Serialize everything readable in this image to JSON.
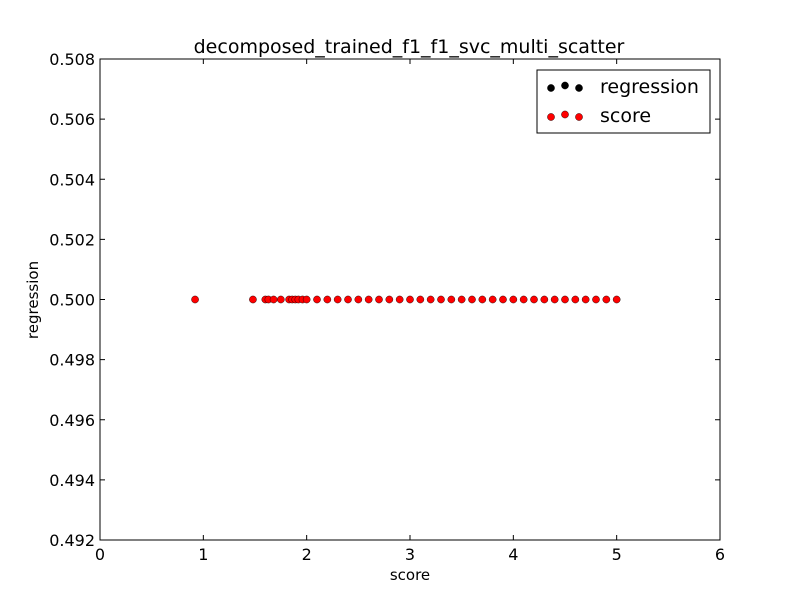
{
  "chart_data": {
    "type": "scatter",
    "title": "decomposed_trained_f1_f1_svc_multi_scatter",
    "xlabel": "score",
    "ylabel": "regression",
    "xlim": [
      0,
      6
    ],
    "ylim": [
      0.492,
      0.508
    ],
    "x_ticks": [
      "0",
      "1",
      "2",
      "3",
      "4",
      "5",
      "6"
    ],
    "y_ticks": [
      "0.492",
      "0.494",
      "0.496",
      "0.498",
      "0.500",
      "0.502",
      "0.504",
      "0.506",
      "0.508"
    ],
    "x_tick_values": [
      0,
      1,
      2,
      3,
      4,
      5,
      6
    ],
    "y_tick_values": [
      0.492,
      0.494,
      0.496,
      0.498,
      0.5,
      0.502,
      0.504,
      0.506,
      0.508
    ],
    "grid": false,
    "legend_position": "top-right",
    "series": [
      {
        "name": "regression",
        "color": "#000000",
        "points": []
      },
      {
        "name": "score",
        "color": "#ff0000",
        "points": [
          [
            0.92,
            0.5
          ],
          [
            1.48,
            0.5
          ],
          [
            1.6,
            0.5
          ],
          [
            1.63,
            0.5
          ],
          [
            1.68,
            0.5
          ],
          [
            1.75,
            0.5
          ],
          [
            1.83,
            0.5
          ],
          [
            1.86,
            0.5
          ],
          [
            1.89,
            0.5
          ],
          [
            1.92,
            0.5
          ],
          [
            1.96,
            0.5
          ],
          [
            2.0,
            0.5
          ],
          [
            2.1,
            0.5
          ],
          [
            2.2,
            0.5
          ],
          [
            2.3,
            0.5
          ],
          [
            2.4,
            0.5
          ],
          [
            2.5,
            0.5
          ],
          [
            2.6,
            0.5
          ],
          [
            2.7,
            0.5
          ],
          [
            2.8,
            0.5
          ],
          [
            2.9,
            0.5
          ],
          [
            3.0,
            0.5
          ],
          [
            3.1,
            0.5
          ],
          [
            3.2,
            0.5
          ],
          [
            3.3,
            0.5
          ],
          [
            3.4,
            0.5
          ],
          [
            3.5,
            0.5
          ],
          [
            3.6,
            0.5
          ],
          [
            3.7,
            0.5
          ],
          [
            3.8,
            0.5
          ],
          [
            3.9,
            0.5
          ],
          [
            4.0,
            0.5
          ],
          [
            4.1,
            0.5
          ],
          [
            4.2,
            0.5
          ],
          [
            4.3,
            0.5
          ],
          [
            4.4,
            0.5
          ],
          [
            4.5,
            0.5
          ],
          [
            4.6,
            0.5
          ],
          [
            4.7,
            0.5
          ],
          [
            4.8,
            0.5
          ],
          [
            4.9,
            0.5
          ],
          [
            5.0,
            0.5
          ]
        ]
      }
    ]
  }
}
